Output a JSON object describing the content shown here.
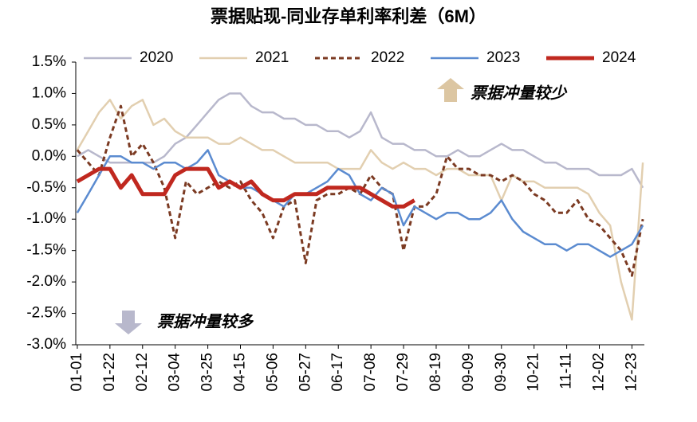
{
  "chart_data": {
    "type": "line",
    "title": "票据贴现-同业存单利率利差（6M）",
    "annotations": [
      "票据冲量较少",
      "票据冲量较多"
    ],
    "x": [
      0,
      7,
      14,
      21,
      28,
      35,
      42,
      49,
      56,
      63,
      70,
      77,
      84,
      91,
      98,
      105,
      112,
      119,
      126,
      133,
      140,
      147,
      154,
      161,
      168,
      175,
      182,
      189,
      196,
      203,
      210,
      217,
      224,
      231,
      238,
      245,
      252,
      259,
      266,
      273,
      280,
      287,
      294,
      301,
      308,
      315,
      322,
      329,
      336,
      343,
      350,
      357,
      364
    ],
    "xlim": [
      -1,
      365
    ],
    "xticks": [
      {
        "value": 0,
        "label": "01-01"
      },
      {
        "value": 21,
        "label": "01-22"
      },
      {
        "value": 42,
        "label": "02-12"
      },
      {
        "value": 63,
        "label": "03-04"
      },
      {
        "value": 84,
        "label": "03-25"
      },
      {
        "value": 105,
        "label": "04-15"
      },
      {
        "value": 126,
        "label": "05-06"
      },
      {
        "value": 147,
        "label": "05-27"
      },
      {
        "value": 168,
        "label": "06-17"
      },
      {
        "value": 189,
        "label": "07-08"
      },
      {
        "value": 210,
        "label": "07-29"
      },
      {
        "value": 231,
        "label": "08-19"
      },
      {
        "value": 252,
        "label": "09-09"
      },
      {
        "value": 273,
        "label": "09-30"
      },
      {
        "value": 294,
        "label": "10-21"
      },
      {
        "value": 315,
        "label": "11-11"
      },
      {
        "value": 336,
        "label": "12-02"
      },
      {
        "value": 357,
        "label": "12-23"
      }
    ],
    "ylim": [
      -3,
      1.5
    ],
    "yticks": [
      {
        "value": 1.5,
        "label": "1.5%"
      },
      {
        "value": 1,
        "label": "1.0%"
      },
      {
        "value": 0.5,
        "label": "0.5%"
      },
      {
        "value": 0,
        "label": "0.0%"
      },
      {
        "value": -0.5,
        "label": "-0.5%"
      },
      {
        "value": -1,
        "label": "-1.0%"
      },
      {
        "value": -1.5,
        "label": "-1.5%"
      },
      {
        "value": -2,
        "label": "-2.0%"
      },
      {
        "value": -2.5,
        "label": "-2.5%"
      },
      {
        "value": -3,
        "label": "-3.0%"
      }
    ],
    "series": [
      {
        "name": "2020",
        "color": "#b8b8cc",
        "values": [
          0.0,
          0.1,
          0.0,
          -0.1,
          -0.1,
          -0.1,
          -0.1,
          -0.1,
          0.0,
          0.2,
          0.3,
          0.5,
          0.7,
          0.9,
          1.0,
          1.0,
          0.8,
          0.7,
          0.7,
          0.6,
          0.6,
          0.5,
          0.5,
          0.4,
          0.4,
          0.3,
          0.4,
          0.7,
          0.3,
          0.2,
          0.2,
          0.1,
          0.1,
          0.0,
          0.0,
          0.1,
          0.0,
          0.0,
          0.1,
          0.2,
          0.1,
          0.1,
          0.0,
          -0.1,
          -0.1,
          -0.2,
          -0.2,
          -0.2,
          -0.3,
          -0.3,
          -0.3,
          -0.2,
          -0.5
        ]
      },
      {
        "name": "2021",
        "color": "#e2cfb0",
        "values": [
          0.1,
          0.4,
          0.7,
          0.9,
          0.6,
          0.8,
          0.9,
          0.5,
          0.6,
          0.4,
          0.3,
          0.3,
          0.3,
          0.2,
          0.2,
          0.3,
          0.2,
          0.1,
          0.1,
          0.0,
          -0.1,
          -0.1,
          -0.1,
          -0.1,
          -0.2,
          -0.2,
          -0.2,
          0.1,
          -0.1,
          -0.2,
          -0.1,
          -0.2,
          -0.2,
          -0.3,
          -0.2,
          -0.2,
          -0.3,
          -0.3,
          -0.3,
          -0.7,
          -0.3,
          -0.4,
          -0.4,
          -0.5,
          -0.5,
          -0.5,
          -0.5,
          -0.6,
          -0.9,
          -1.1,
          -2.0,
          -2.6,
          -0.1
        ]
      },
      {
        "name": "2022",
        "color": "#7b3a22",
        "dashed": true,
        "values": [
          0.1,
          -0.1,
          -0.3,
          0.3,
          0.8,
          0.0,
          0.2,
          -0.1,
          -0.5,
          -1.3,
          -0.4,
          -0.6,
          -0.5,
          -0.4,
          -0.5,
          -0.4,
          -0.7,
          -0.9,
          -1.3,
          -0.8,
          -0.7,
          -1.7,
          -0.7,
          -0.6,
          -0.6,
          -0.5,
          -0.6,
          -0.3,
          -0.5,
          -0.6,
          -1.5,
          -0.8,
          -0.8,
          -0.6,
          0.0,
          -0.2,
          -0.2,
          -0.3,
          -0.3,
          -0.4,
          -0.3,
          -0.4,
          -0.6,
          -0.7,
          -0.9,
          -0.9,
          -0.7,
          -1.0,
          -1.1,
          -1.3,
          -1.5,
          -1.9,
          -1.0
        ]
      },
      {
        "name": "2023",
        "color": "#5b8bd0",
        "values": [
          -0.9,
          -0.6,
          -0.3,
          0.0,
          0.0,
          -0.1,
          -0.1,
          -0.2,
          -0.1,
          -0.1,
          -0.2,
          -0.1,
          0.1,
          -0.3,
          -0.4,
          -0.5,
          -0.5,
          -0.6,
          -0.7,
          -0.8,
          -0.6,
          -0.6,
          -0.5,
          -0.4,
          -0.2,
          -0.3,
          -0.6,
          -0.7,
          -0.5,
          -0.6,
          -1.1,
          -0.8,
          -0.9,
          -1.0,
          -0.9,
          -0.9,
          -1.0,
          -1.0,
          -0.9,
          -0.7,
          -1.0,
          -1.2,
          -1.3,
          -1.4,
          -1.4,
          -1.5,
          -1.4,
          -1.4,
          -1.5,
          -1.6,
          -1.5,
          -1.4,
          -1.1
        ]
      },
      {
        "name": "2024",
        "color": "#c0281f",
        "values": [
          -0.4,
          -0.3,
          -0.2,
          -0.2,
          -0.5,
          -0.3,
          -0.6,
          -0.6,
          -0.6,
          -0.3,
          -0.2,
          -0.2,
          -0.2,
          -0.5,
          -0.4,
          -0.5,
          -0.4,
          -0.6,
          -0.7,
          -0.7,
          -0.6,
          -0.6,
          -0.6,
          -0.5,
          -0.5,
          -0.5,
          -0.5,
          -0.6,
          -0.7,
          -0.8,
          -0.8,
          -0.7,
          null,
          null,
          null,
          null,
          null,
          null,
          null,
          null,
          null,
          null,
          null,
          null,
          null,
          null,
          null,
          null,
          null,
          null,
          null,
          null,
          null
        ]
      }
    ]
  }
}
